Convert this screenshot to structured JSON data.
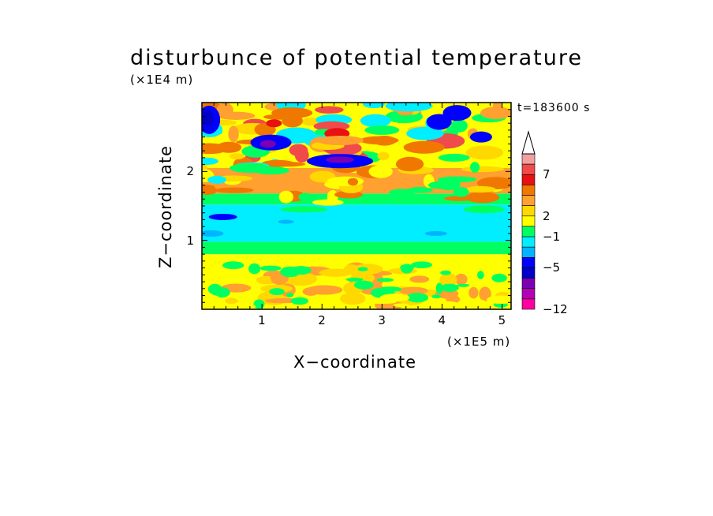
{
  "chart_data": {
    "type": "heatmap",
    "title": "disturbunce of potential temperature",
    "xlabel": "X−coordinate",
    "ylabel": "Z−coordinate",
    "x_unit": "(×1E5 m)",
    "z_unit": "(×1E4 m)",
    "time_label": "t=183600 s",
    "xlim": [
      0,
      5.15
    ],
    "ylim": [
      0,
      3.0
    ],
    "x_ticks": [
      "1",
      "2",
      "3",
      "4",
      "5"
    ],
    "y_ticks": [
      "1",
      "2"
    ],
    "colorbar": {
      "labels": [
        "7",
        "2",
        "−1",
        "−5",
        "−12"
      ],
      "colors": [
        "#f0a0a0",
        "#f04a4a",
        "#e81010",
        "#f07800",
        "#ffa030",
        "#ffd800",
        "#ffff00",
        "#00ff60",
        "#00eeff",
        "#00b4ff",
        "#0000ff",
        "#0000c8",
        "#7a00b4",
        "#b400b4",
        "#ff00a0"
      ],
      "extend": "max",
      "extend_color": "#ffffff"
    },
    "layers": [
      {
        "z_range": [
          0,
          0.8
        ],
        "dominant": "2 to 4 (yellow/orange)"
      },
      {
        "z_range": [
          0.8,
          1.0
        ],
        "dominant": "0 to 2 (green)"
      },
      {
        "z_range": [
          1.0,
          1.5
        ],
        "dominant": "−1 to 0 (cyan), patches −5 to −3 near z=1.35"
      },
      {
        "z_range": [
          1.5,
          2.0
        ],
        "dominant": "2 to 7 (orange/yellow)"
      },
      {
        "z_range": [
          2.0,
          3.0
        ],
        "dominant": "mixed, −8 to 7 with blue/purple minima near x=1.2, 2.3, 4.2"
      }
    ]
  }
}
